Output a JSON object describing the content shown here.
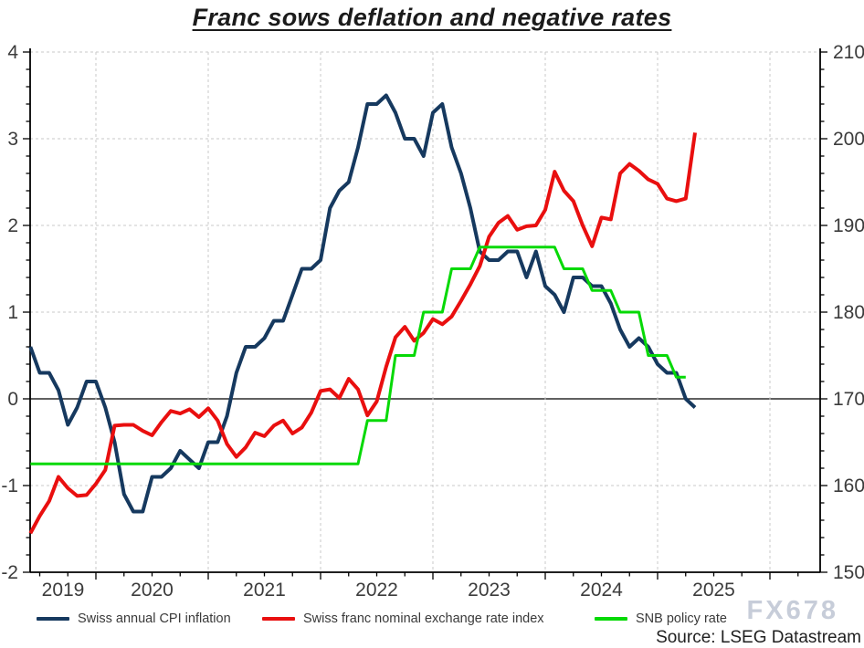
{
  "title": "Franc sows deflation and negative rates",
  "watermark": "FX678",
  "source": "Source: LSEG Datastream",
  "legend": [
    {
      "label": "Swiss annual CPI inflation",
      "color": "#16395f"
    },
    {
      "label": "Swiss franc nominal exchange rate index",
      "color": "#e90f0f"
    },
    {
      "label": "SNB policy rate",
      "color": "#06d906"
    }
  ],
  "chart_data": {
    "type": "line",
    "title": "Franc sows deflation and negative rates",
    "x_start_month": "2019-06",
    "x_axis": {
      "year_labels": [
        "2019",
        "2020",
        "2021",
        "2022",
        "2023",
        "2024",
        "2025"
      ],
      "gridline_months": [
        "2020-01",
        "2021-01",
        "2022-01",
        "2023-01",
        "2024-01",
        "2025-01",
        "2026-01"
      ],
      "minor_tick_every_months": 3
    },
    "left_axis": {
      "min": -2,
      "max": 4,
      "major_step": 1,
      "minor_step": 0.2,
      "tick_labels": [
        "-2",
        "-1",
        "0",
        "1",
        "2",
        "3",
        "4"
      ],
      "zero_line": 0
    },
    "right_axis": {
      "min": 150,
      "max": 210,
      "major_step": 10,
      "minor_step": 2,
      "tick_labels": [
        "150",
        "160",
        "170",
        "180",
        "190",
        "200",
        "210"
      ]
    },
    "grid": "dashed",
    "legend_position": "bottom",
    "series": [
      {
        "name": "Swiss annual CPI inflation",
        "axis": "left",
        "color": "#16395f",
        "width": 4,
        "values": [
          0.6,
          0.3,
          0.3,
          0.1,
          -0.3,
          -0.1,
          0.2,
          0.2,
          -0.1,
          -0.5,
          -1.1,
          -1.3,
          -1.3,
          -0.9,
          -0.9,
          -0.8,
          -0.6,
          -0.7,
          -0.8,
          -0.5,
          -0.5,
          -0.2,
          0.3,
          0.6,
          0.6,
          0.7,
          0.9,
          0.9,
          1.2,
          1.5,
          1.5,
          1.6,
          2.2,
          2.4,
          2.5,
          2.9,
          3.4,
          3.4,
          3.5,
          3.3,
          3.0,
          3.0,
          2.8,
          3.3,
          3.4,
          2.9,
          2.6,
          2.2,
          1.7,
          1.6,
          1.6,
          1.7,
          1.7,
          1.4,
          1.7,
          1.3,
          1.2,
          1.0,
          1.4,
          1.4,
          1.3,
          1.3,
          1.1,
          0.8,
          0.6,
          0.7,
          0.6,
          0.4,
          0.3,
          0.3,
          0.0,
          -0.1
        ]
      },
      {
        "name": "Swiss franc nominal exchange rate index",
        "axis": "right",
        "color": "#e90f0f",
        "width": 4,
        "values": [
          154.5,
          156.5,
          158.2,
          161.0,
          159.7,
          158.8,
          158.9,
          160.2,
          161.8,
          166.9,
          167.0,
          167.0,
          166.3,
          165.8,
          167.3,
          168.6,
          168.3,
          168.8,
          167.9,
          168.9,
          167.5,
          164.8,
          163.3,
          164.4,
          166.1,
          165.7,
          166.9,
          167.5,
          166.0,
          166.7,
          168.4,
          170.9,
          171.1,
          170.1,
          172.3,
          171.1,
          168.1,
          169.7,
          173.7,
          177.1,
          178.3,
          176.7,
          177.6,
          179.2,
          178.6,
          179.5,
          181.3,
          183.2,
          185.3,
          188.7,
          190.3,
          191.1,
          189.5,
          189.9,
          190.0,
          191.8,
          196.2,
          194.0,
          192.8,
          190.0,
          187.6,
          190.9,
          190.7,
          196.0,
          197.1,
          196.3,
          195.3,
          194.8,
          193.1,
          192.8,
          193.1,
          200.7
        ]
      },
      {
        "name": "SNB policy rate",
        "axis": "left",
        "color": "#06d906",
        "width": 3,
        "values": [
          -0.75,
          -0.75,
          -0.75,
          -0.75,
          -0.75,
          -0.75,
          -0.75,
          -0.75,
          -0.75,
          -0.75,
          -0.75,
          -0.75,
          -0.75,
          -0.75,
          -0.75,
          -0.75,
          -0.75,
          -0.75,
          -0.75,
          -0.75,
          -0.75,
          -0.75,
          -0.75,
          -0.75,
          -0.75,
          -0.75,
          -0.75,
          -0.75,
          -0.75,
          -0.75,
          -0.75,
          -0.75,
          -0.75,
          -0.75,
          -0.75,
          -0.75,
          -0.25,
          -0.25,
          -0.25,
          0.5,
          0.5,
          0.5,
          1.0,
          1.0,
          1.0,
          1.5,
          1.5,
          1.5,
          1.75,
          1.75,
          1.75,
          1.75,
          1.75,
          1.75,
          1.75,
          1.75,
          1.75,
          1.5,
          1.5,
          1.5,
          1.25,
          1.25,
          1.25,
          1.0,
          1.0,
          1.0,
          0.5,
          0.5,
          0.5,
          0.25,
          0.25
        ]
      }
    ]
  }
}
